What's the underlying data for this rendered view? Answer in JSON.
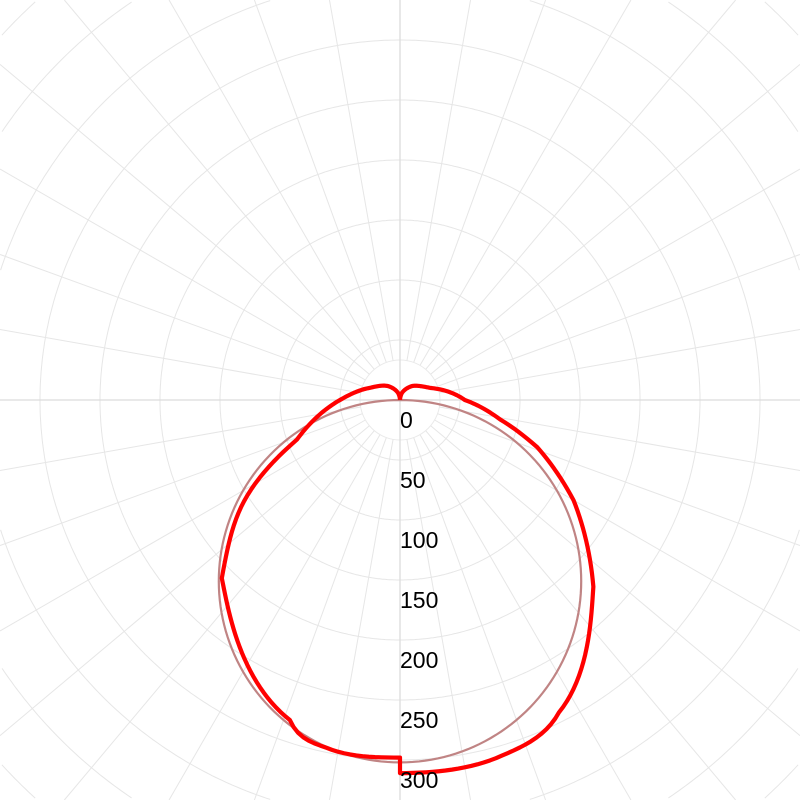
{
  "chart_data": {
    "type": "polar-line",
    "title": "",
    "radial_axis": {
      "tick_labels": [
        "0",
        "50",
        "100",
        "150",
        "200",
        "250",
        "300"
      ],
      "ticks": [
        0,
        50,
        100,
        150,
        200,
        250,
        300
      ],
      "grid": true,
      "angular_grid_step_deg": 10
    },
    "angle_reference": "0° pointing down",
    "series": [
      {
        "color": "#ff0000",
        "side_right": {
          "angles_deg": [
            0,
            15,
            27,
            46,
            60,
            71,
            79,
            90,
            112,
            140,
            165,
            180
          ],
          "values": [
            311,
            309,
            292,
            224,
            167,
            121,
            85,
            54,
            27,
            15,
            6,
            0
          ]
        },
        "side_left": {
          "angles_deg": [
            0,
            11,
            19,
            45,
            57,
            69,
            90,
            112,
            140,
            165,
            180
          ],
          "values": [
            298,
            297,
            282,
            210,
            155,
            92,
            50,
            27,
            15,
            6,
            0
          ]
        }
      },
      {
        "color": "#c08484",
        "shape": "cosine",
        "peak_value": 302
      }
    ]
  }
}
